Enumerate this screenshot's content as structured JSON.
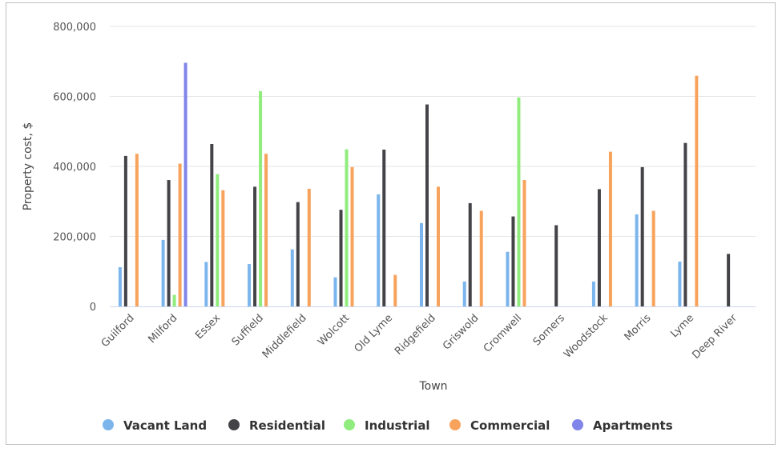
{
  "chart_data": {
    "type": "bar",
    "xlabel": "Town",
    "ylabel": "Property cost, $",
    "ylim": [
      0,
      800000
    ],
    "yticks": [
      0,
      200000,
      400000,
      600000,
      800000
    ],
    "ytick_labels": [
      "0",
      "200,000",
      "400,000",
      "600,000",
      "800,000"
    ],
    "grid": true,
    "legend_position": "bottom",
    "categories": [
      "Guilford",
      "Milford",
      "Essex",
      "Suffield",
      "Middlefield",
      "Wolcott",
      "Old Lyme",
      "Ridgefield",
      "Griswold",
      "Cromwell",
      "Somers",
      "Woodstock",
      "Morris",
      "Lyme",
      "Deep River"
    ],
    "series": [
      {
        "name": "Vacant Land",
        "color": "#7cb5ec",
        "values": [
          112000,
          190000,
          127000,
          121000,
          163000,
          83000,
          320000,
          238000,
          71000,
          156000,
          null,
          71000,
          263000,
          128000,
          null
        ]
      },
      {
        "name": "Residential",
        "color": "#434348",
        "values": [
          430000,
          361000,
          464000,
          342000,
          298000,
          276000,
          448000,
          577000,
          295000,
          257000,
          232000,
          335000,
          398000,
          467000,
          150000
        ]
      },
      {
        "name": "Industrial",
        "color": "#90ed7d",
        "values": [
          null,
          33000,
          378000,
          615000,
          null,
          449000,
          null,
          null,
          null,
          597000,
          null,
          null,
          null,
          null,
          null
        ]
      },
      {
        "name": "Commercial",
        "color": "#f7a35c",
        "values": [
          436000,
          408000,
          332000,
          436000,
          336000,
          398000,
          90000,
          342000,
          273000,
          361000,
          null,
          442000,
          273000,
          659000,
          null
        ]
      },
      {
        "name": "Apartments",
        "color": "#8085e9",
        "values": [
          null,
          696000,
          null,
          null,
          null,
          null,
          null,
          null,
          null,
          null,
          null,
          null,
          null,
          null,
          null
        ]
      }
    ]
  }
}
